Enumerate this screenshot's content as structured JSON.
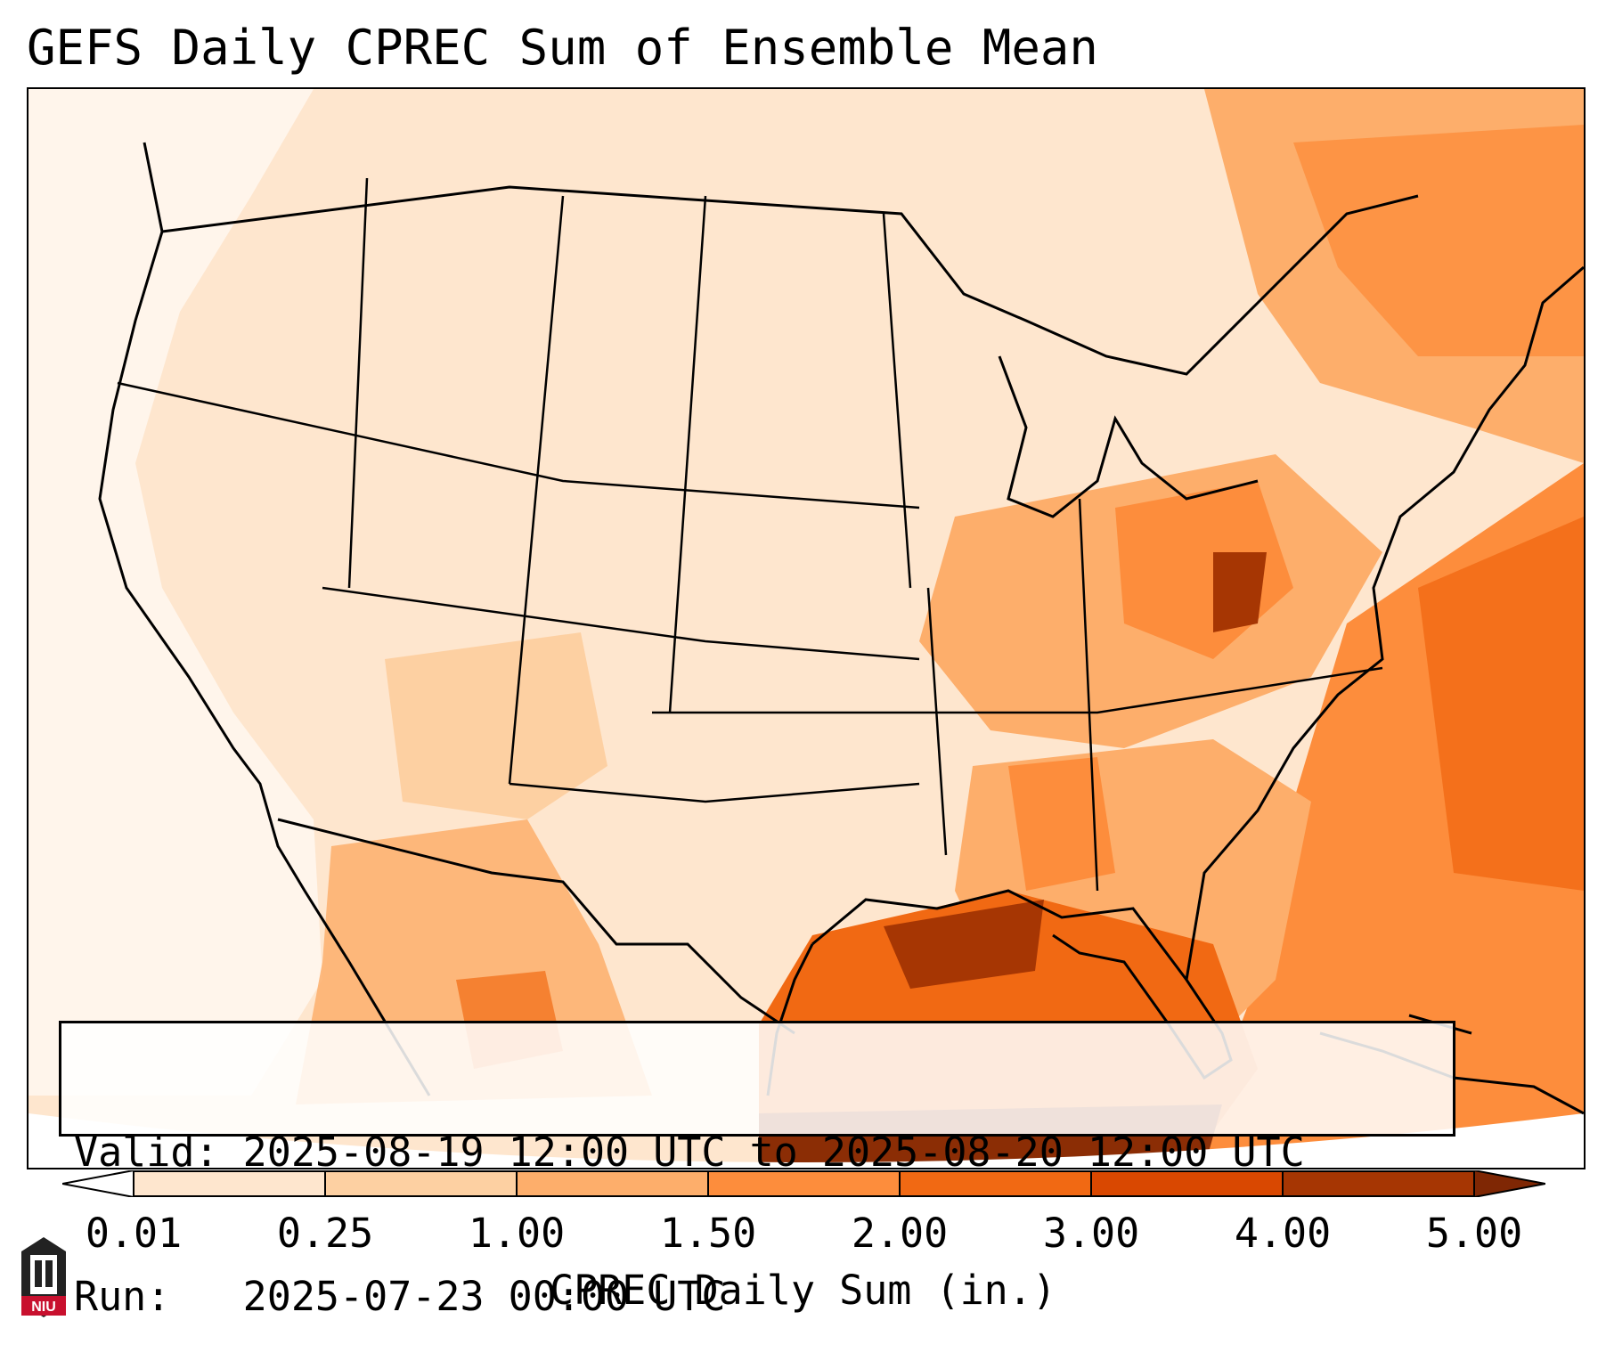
{
  "title": "GEFS Daily CPREC Sum of Ensemble Mean",
  "info": {
    "valid_label": "Valid: 2025-08-19 12:00 UTC to 2025-08-20 12:00 UTC",
    "run_label": "Run:   2025-07-23 00:00 UTC"
  },
  "colorbar": {
    "label": "CPREC Daily Sum (in.)",
    "levels": [
      "0.01",
      "0.25",
      "1.00",
      "1.50",
      "2.00",
      "3.00",
      "4.00",
      "5.00"
    ],
    "colors": [
      "#fff5eb",
      "#fee6ce",
      "#fdd0a2",
      "#fdae6b",
      "#fd8d3c",
      "#f16913",
      "#d94801",
      "#a63603",
      "#7f2704"
    ],
    "under_color": "#ffffff",
    "over_color": "#7f2704"
  },
  "logo": {
    "text": "NIU",
    "colors": {
      "shield": "#c8102e",
      "tower": "#222222"
    }
  }
}
